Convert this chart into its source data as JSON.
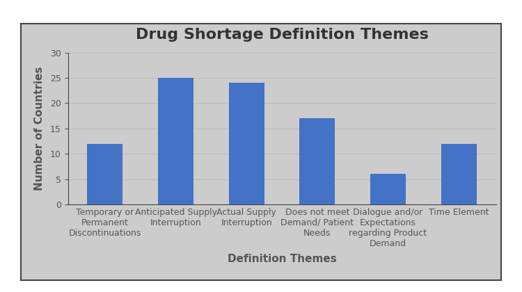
{
  "title": "Drug Shortage Definition Themes",
  "xlabel": "Definition Themes",
  "ylabel": "Number of Countries",
  "categories": [
    "Temporary or\nPermanent\nDiscontinuations",
    "Anticipated Supply\nInterruption",
    "Actual Supply\nInterruption",
    "Does not meet\nDemand/ Patient\nNeeds",
    "Dialogue and/or\nExpectations\nregarding Product\nDemand",
    "Time Element"
  ],
  "values": [
    12,
    25,
    24,
    17,
    6,
    12
  ],
  "bar_color": "#4472C4",
  "ylim": [
    0,
    30
  ],
  "yticks": [
    0,
    5,
    10,
    15,
    20,
    25,
    30
  ],
  "outer_bg_color": "#FFFFFF",
  "inner_bg_color": "#CCCCCC",
  "title_fontsize": 16,
  "label_fontsize": 11,
  "tick_fontsize": 9,
  "title_color": "#333333",
  "label_color": "#555555",
  "tick_color": "#555555",
  "grid_color": "#BBBBBB",
  "spine_color": "#444444"
}
